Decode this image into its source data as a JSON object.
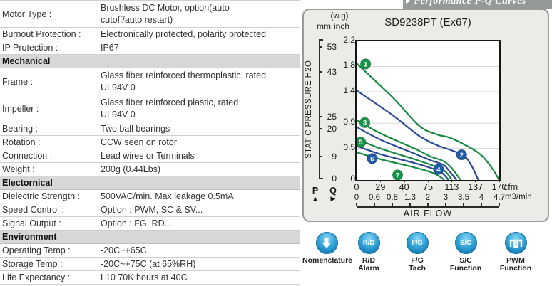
{
  "table": {
    "rows": [
      {
        "type": "row",
        "label": "Motor Type :",
        "value": "Brushless DC Motor, option(auto\ncutoff/auto restart)"
      },
      {
        "type": "row",
        "label": "Burnout Protection :",
        "value": "Electronically protected, polarity protected"
      },
      {
        "type": "row",
        "label": "IP Protection :",
        "value": "IP67"
      },
      {
        "type": "section",
        "label": "Mechanical"
      },
      {
        "type": "row",
        "label": "Frame :",
        "value": "Glass fiber reinforced thermoplastic, rated\nUL94V-0"
      },
      {
        "type": "row",
        "label": "Impeller :",
        "value": "Glass fiber reinforced plastic, rated\nUL94V-0"
      },
      {
        "type": "row",
        "label": "Bearing :",
        "value": "Two ball bearings"
      },
      {
        "type": "row",
        "label": "Rotation :",
        "value": "CCW seen on rotor"
      },
      {
        "type": "row",
        "label": "Connection :",
        "value": "Lead wires or Terminals"
      },
      {
        "type": "row",
        "label": "Weight :",
        "value": "200g (0.44Lbs)"
      },
      {
        "type": "section",
        "label": "Electornical"
      },
      {
        "type": "row",
        "label": "Dielectric Strength :",
        "value": "500VAC/min. Max leakage 0.5mA"
      },
      {
        "type": "row",
        "label": "Speed Control :",
        "value": "Option : PWM, SC & SV..."
      },
      {
        "type": "row",
        "label": "Signal Output :",
        "value": "Option : FG, RD..."
      },
      {
        "type": "section",
        "label": "Environment"
      },
      {
        "type": "row",
        "label": "Operating Temp :",
        "value": "-20C~+65C"
      },
      {
        "type": "row",
        "label": "Storage Temp :",
        "value": "-20C~+75C (at 65%RH)"
      },
      {
        "type": "row",
        "label": "Life Expectancy :",
        "value": "L10 70K hours at 40C"
      }
    ]
  },
  "banner": {
    "arrow": "▸",
    "text": "Performance P-Q Curves"
  },
  "chart_data": {
    "type": "line",
    "title": "SD9238PT (Ex67)",
    "p_marker": "P",
    "p_arrow": "▲",
    "q_marker": "Q",
    "q_arrow": "▶",
    "x_axis": {
      "label": "AIR FLOW",
      "cfm_ticks": [
        0,
        29,
        40,
        75,
        113,
        137,
        170
      ],
      "m3min_ticks": [
        "0",
        "0.6",
        "0.8",
        "1.3",
        "2",
        "3",
        "3.5",
        "4",
        "4.7"
      ],
      "units": [
        "cfm",
        "m3/min"
      ]
    },
    "y_axis": {
      "label": "STATIC PRESSURE H2O",
      "units_note": "(w.g)",
      "mm_unit": "mm",
      "inch_unit": "inch",
      "mm_ticks": [
        53,
        43,
        25,
        20,
        9,
        0
      ],
      "inch_ticks": [
        "2.2",
        "1.8",
        "1.4",
        "0.9",
        "0.5",
        "0"
      ],
      "inch_max": 2.2
    },
    "grid_inch": [
      1.8,
      1.4,
      0.9,
      0.5
    ],
    "series": [
      {
        "n": 1,
        "color": "green",
        "badge": [
          11,
          1.84
        ],
        "points": [
          [
            0,
            1.85
          ],
          [
            35,
            1.3
          ],
          [
            62,
            0.86
          ],
          [
            90,
            0.72
          ],
          [
            113,
            0.66
          ],
          [
            140,
            0.44
          ],
          [
            158,
            0.22
          ],
          [
            170,
            0
          ]
        ]
      },
      {
        "n": 2,
        "color": "blue",
        "badge": [
          123,
          0.4
        ],
        "points": [
          [
            0,
            1.42
          ],
          [
            35,
            1.02
          ],
          [
            62,
            0.7
          ],
          [
            90,
            0.55
          ],
          [
            113,
            0.47
          ],
          [
            126,
            0.38
          ],
          [
            134,
            0.2
          ],
          [
            141,
            0
          ]
        ]
      },
      {
        "n": 3,
        "color": "green",
        "badge": [
          10,
          0.91
        ],
        "points": [
          [
            0,
            0.95
          ],
          [
            29,
            0.74
          ],
          [
            55,
            0.5
          ],
          [
            80,
            0.37
          ],
          [
            100,
            0.3
          ],
          [
            113,
            0.19
          ],
          [
            122,
            0
          ]
        ]
      },
      {
        "n": 4,
        "color": "blue",
        "badge": [
          92,
          0.17
        ],
        "points": [
          [
            0,
            0.84
          ],
          [
            29,
            0.64
          ],
          [
            55,
            0.42
          ],
          [
            80,
            0.31
          ],
          [
            100,
            0.24
          ],
          [
            110,
            0.13
          ],
          [
            118,
            0
          ]
        ]
      },
      {
        "n": 5,
        "color": "green",
        "badge": [
          5,
          0.6
        ],
        "points": [
          [
            0,
            0.65
          ],
          [
            29,
            0.5
          ],
          [
            55,
            0.33
          ],
          [
            80,
            0.24
          ],
          [
            98,
            0.17
          ],
          [
            107,
            0.09
          ],
          [
            113,
            0
          ]
        ]
      },
      {
        "n": 6,
        "color": "blue",
        "badge": [
          19,
          0.34
        ],
        "points": [
          [
            0,
            0.54
          ],
          [
            29,
            0.41
          ],
          [
            55,
            0.27
          ],
          [
            80,
            0.19
          ],
          [
            93,
            0.14
          ],
          [
            102,
            0.07
          ],
          [
            108,
            0
          ]
        ]
      },
      {
        "n": 7,
        "color": "green",
        "badge": [
          37,
          0.08
        ],
        "points": [
          [
            0,
            0.44
          ],
          [
            29,
            0.33
          ],
          [
            55,
            0.2
          ],
          [
            75,
            0.14
          ],
          [
            88,
            0.09
          ],
          [
            96,
            0.04
          ],
          [
            101,
            0
          ]
        ]
      }
    ]
  },
  "icons": [
    {
      "name": "nomenclature",
      "glyph": "arrow-down",
      "label": "Nomenclature"
    },
    {
      "name": "rd-alarm",
      "glyph": "R/D",
      "label": "R/D\nAlarm"
    },
    {
      "name": "fg-tach",
      "glyph": "F/G",
      "label": "F/G\nTach"
    },
    {
      "name": "sc-function",
      "glyph": "S/C",
      "label": "S/C\nFunction"
    },
    {
      "name": "pwm-function",
      "glyph": "pwm-wave",
      "label": "PWM\nFunction"
    }
  ],
  "colors": {
    "curve_green": "#168a43",
    "curve_blue": "#2b4a9a",
    "badge_green": "#169549",
    "badge_blue": "#1d5ca8",
    "grid": "#d9d9d9",
    "panel_bg": "#ebebe7",
    "panel_border": "#9a9a9a",
    "section_bg": "#d7d7d7",
    "banner_bg": "#95999a",
    "icon_blue": "#2196cf"
  }
}
